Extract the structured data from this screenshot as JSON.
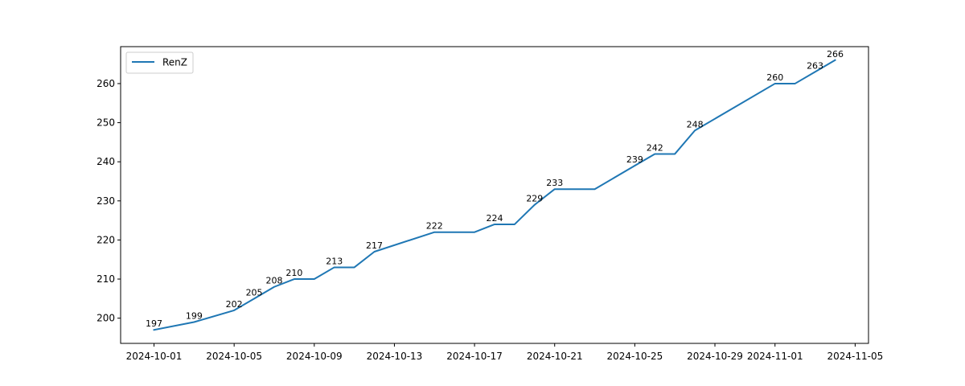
{
  "chart_data": {
    "type": "line",
    "title": "",
    "xlabel": "",
    "ylabel": "",
    "grid": false,
    "legend_position": "top-left",
    "xlim": [
      "2024-09-29T08:00",
      "2024-11-05T16:00"
    ],
    "ylim": [
      193.55,
      269.45
    ],
    "x_ticks": [
      "2024-10-01",
      "2024-10-05",
      "2024-10-09",
      "2024-10-13",
      "2024-10-17",
      "2024-10-21",
      "2024-10-25",
      "2024-10-29",
      "2024-11-01",
      "2024-11-05"
    ],
    "y_ticks": [
      200,
      210,
      220,
      230,
      240,
      250,
      260
    ],
    "series": [
      {
        "name": "RenZ",
        "color": "#1f77b4",
        "points": [
          {
            "x": "2024-10-01",
            "y": 197,
            "label": "197"
          },
          {
            "x": "2024-10-03",
            "y": 199,
            "label": "199"
          },
          {
            "x": "2024-10-05",
            "y": 202,
            "label": "202"
          },
          {
            "x": "2024-10-06",
            "y": 205,
            "label": "205"
          },
          {
            "x": "2024-10-07",
            "y": 208,
            "label": "208"
          },
          {
            "x": "2024-10-08",
            "y": 210,
            "label": "210"
          },
          {
            "x": "2024-10-09",
            "y": 210,
            "label": ""
          },
          {
            "x": "2024-10-10",
            "y": 213,
            "label": "213"
          },
          {
            "x": "2024-10-11",
            "y": 213,
            "label": ""
          },
          {
            "x": "2024-10-12",
            "y": 217,
            "label": "217"
          },
          {
            "x": "2024-10-15",
            "y": 222,
            "label": "222"
          },
          {
            "x": "2024-10-17",
            "y": 222,
            "label": ""
          },
          {
            "x": "2024-10-18",
            "y": 224,
            "label": "224"
          },
          {
            "x": "2024-10-19",
            "y": 224,
            "label": ""
          },
          {
            "x": "2024-10-20",
            "y": 229,
            "label": "229"
          },
          {
            "x": "2024-10-21",
            "y": 233,
            "label": "233"
          },
          {
            "x": "2024-10-23",
            "y": 233,
            "label": ""
          },
          {
            "x": "2024-10-25",
            "y": 239,
            "label": "239"
          },
          {
            "x": "2024-10-26",
            "y": 242,
            "label": "242"
          },
          {
            "x": "2024-10-27",
            "y": 242,
            "label": ""
          },
          {
            "x": "2024-10-28",
            "y": 248,
            "label": "248"
          },
          {
            "x": "2024-11-01",
            "y": 260,
            "label": "260"
          },
          {
            "x": "2024-11-02",
            "y": 260,
            "label": ""
          },
          {
            "x": "2024-11-03",
            "y": 263,
            "label": "263"
          },
          {
            "x": "2024-11-04",
            "y": 266,
            "label": "266"
          }
        ]
      }
    ]
  }
}
